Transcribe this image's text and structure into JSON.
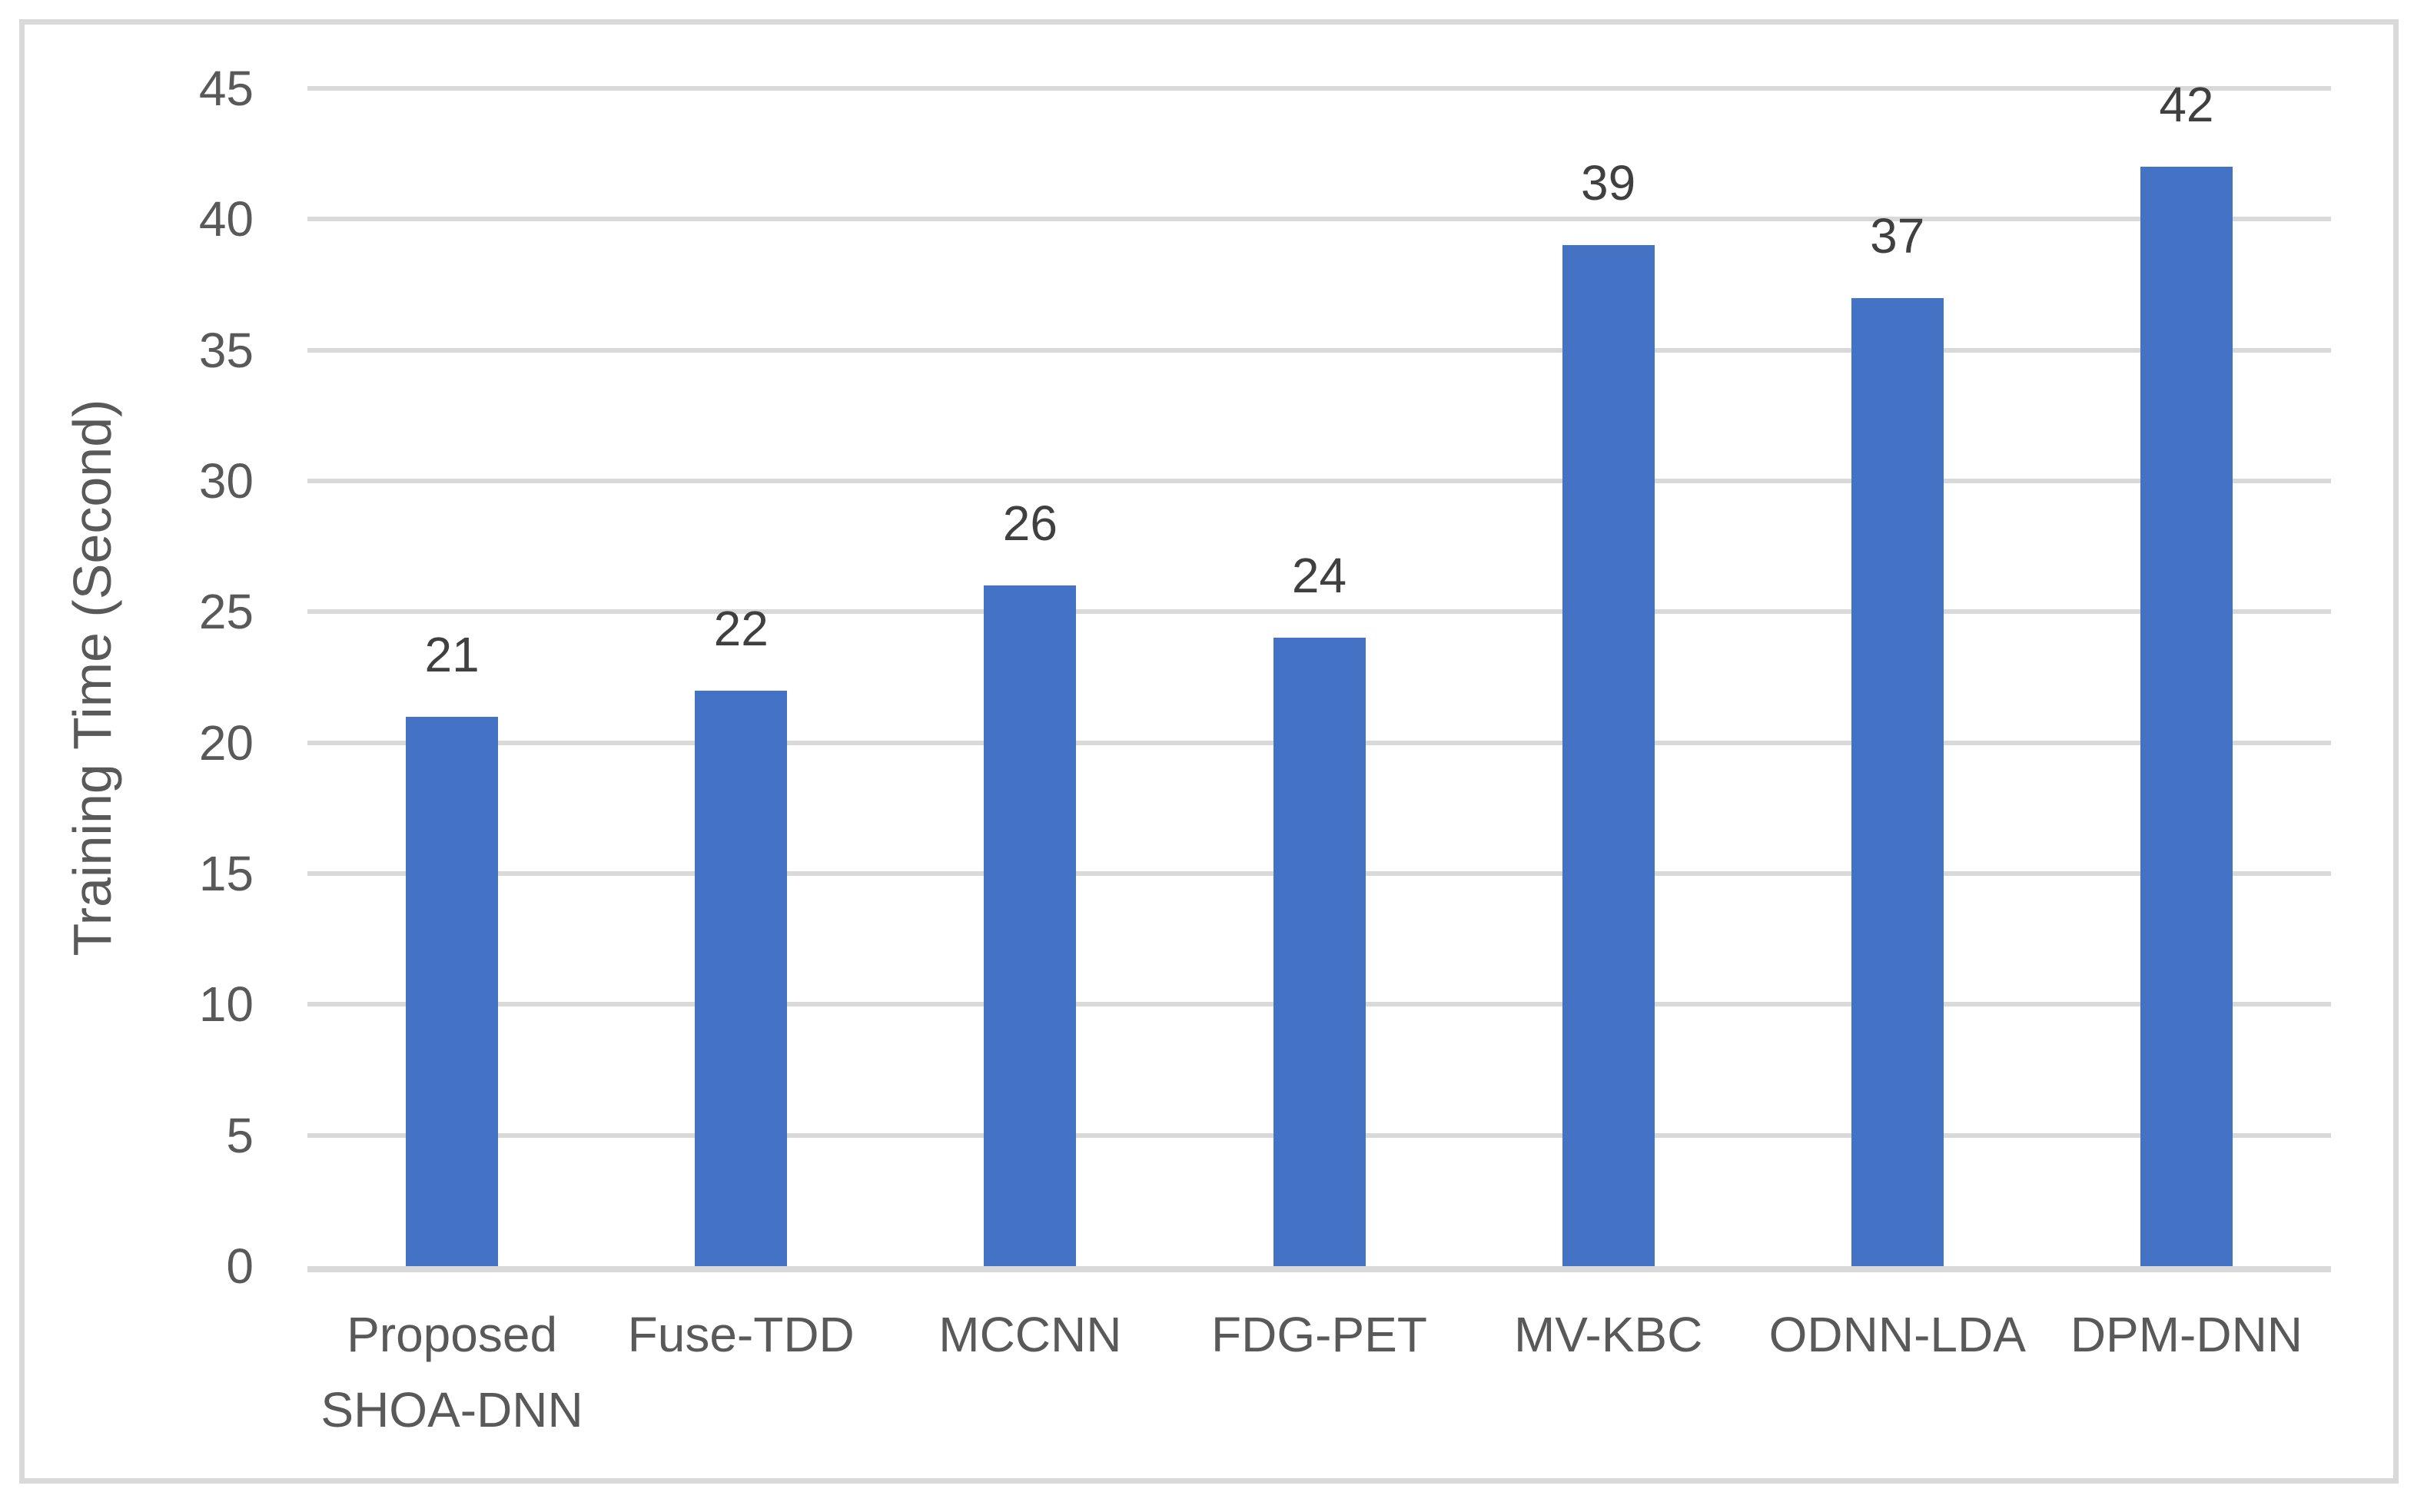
{
  "chart_data": {
    "type": "bar",
    "title": "",
    "xlabel": "",
    "ylabel": "Training Time (Second)",
    "categories": [
      "Proposed SHOA-DNN",
      "Fuse-TDD",
      "MCCNN",
      "FDG-PET",
      "MV-KBC",
      "ODNN-LDA",
      "DPM-DNN"
    ],
    "values": [
      21,
      22,
      26,
      24,
      39,
      37,
      42
    ],
    "data_labels": [
      "21",
      "22",
      "26",
      "24",
      "39",
      "37",
      "42"
    ],
    "yticks": [
      0,
      5,
      10,
      15,
      20,
      25,
      30,
      35,
      40,
      45
    ],
    "ylim": [
      0,
      45
    ],
    "grid": "horizontal",
    "legend": "none",
    "colors": {
      "bar": "#4472C4",
      "gridline": "#D9D9D9",
      "axis_line": "#D9D9D9",
      "tick_label": "#595959",
      "data_label": "#404040",
      "chart_border": "#D9D9D9",
      "background": "#FFFFFF"
    }
  }
}
